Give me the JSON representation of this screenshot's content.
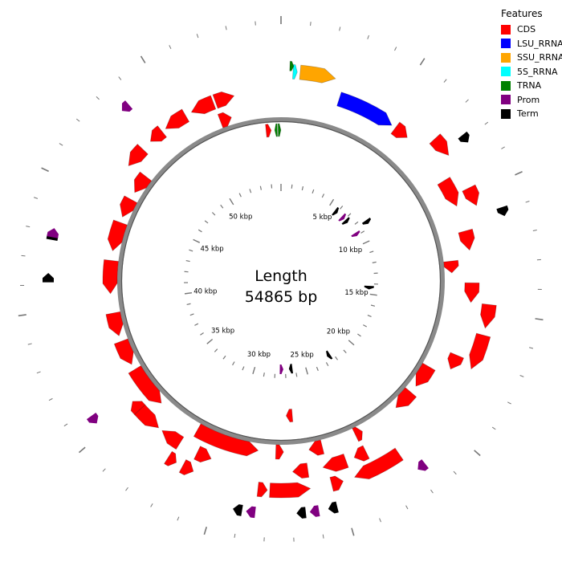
{
  "legend": {
    "title": "Features",
    "items": [
      {
        "label": "CDS",
        "color": "#ff0000"
      },
      {
        "label": "LSU_RRNA",
        "color": "#0000ff"
      },
      {
        "label": "SSU_RRNA",
        "color": "#ffa500"
      },
      {
        "label": "5S_RRNA",
        "color": "#00ffff"
      },
      {
        "label": "TRNA",
        "color": "#008000"
      },
      {
        "label": "Prom",
        "color": "#800080"
      },
      {
        "label": "Term",
        "color": "#000000"
      }
    ]
  },
  "center": {
    "line1": "Length",
    "line2": "54865 bp"
  },
  "sequence_length_bp": 54865,
  "scale_labels": [
    {
      "bp": 5000,
      "label": "5 kbp"
    },
    {
      "bp": 10000,
      "label": "10 kbp"
    },
    {
      "bp": 15000,
      "label": "15 kbp"
    },
    {
      "bp": 20000,
      "label": "20 kbp"
    },
    {
      "bp": 25000,
      "label": "25 kbp"
    },
    {
      "bp": 30000,
      "label": "30 kbp"
    },
    {
      "bp": 35000,
      "label": "35 kbp"
    },
    {
      "bp": 40000,
      "label": "40 kbp"
    },
    {
      "bp": 45000,
      "label": "45 kbp"
    },
    {
      "bp": 50000,
      "label": "50 kbp"
    }
  ],
  "features": [
    {
      "type": "SSU_RRNA",
      "track": "o3",
      "start": 800,
      "end": 2300,
      "strand": 1
    },
    {
      "type": "5S_RRNA",
      "track": "o3",
      "start": 500,
      "end": 680,
      "strand": 1
    },
    {
      "type": "TRNA",
      "track": "o4",
      "start": 360,
      "end": 520,
      "strand": 1
    },
    {
      "type": "LSU_RRNA",
      "track": "o2",
      "start": 2700,
      "end": 5400,
      "strand": 1
    },
    {
      "type": "CDS",
      "track": "o2",
      "start": 5600,
      "end": 6300,
      "strand": 1
    },
    {
      "type": "CDS",
      "track": "o3",
      "start": 7200,
      "end": 8100,
      "strand": 1
    },
    {
      "type": "CDS",
      "track": "o3",
      "start": 9700,
      "end": 10500,
      "strand": 1
    },
    {
      "type": "CDS",
      "track": "o2",
      "start": 8900,
      "end": 10200,
      "strand": 1
    },
    {
      "type": "CDS",
      "track": "o2",
      "start": 11400,
      "end": 12300,
      "strand": 1
    },
    {
      "type": "CDS",
      "track": "o1",
      "start": 12700,
      "end": 13300,
      "strand": 1
    },
    {
      "type": "CDS",
      "track": "o2",
      "start": 13800,
      "end": 14700,
      "strand": 1
    },
    {
      "type": "CDS",
      "track": "o3",
      "start": 14700,
      "end": 15700,
      "strand": 1
    },
    {
      "type": "CDS",
      "track": "o3",
      "start": 16000,
      "end": 17500,
      "strand": 1
    },
    {
      "type": "CDS",
      "track": "o2",
      "start": 17200,
      "end": 17900,
      "strand": 1
    },
    {
      "type": "CDS",
      "track": "o1",
      "start": 18300,
      "end": 19500,
      "strand": 1
    },
    {
      "type": "CDS",
      "track": "o1",
      "start": 19900,
      "end": 21000,
      "strand": 1
    },
    {
      "type": "CDS",
      "track": "o3",
      "start": 22200,
      "end": 24300,
      "strand": 1
    },
    {
      "type": "CDS",
      "track": "o2",
      "start": 23400,
      "end": 24000,
      "strand": 1
    },
    {
      "type": "CDS",
      "track": "o2",
      "start": 24400,
      "end": 25500,
      "strand": 1
    },
    {
      "type": "CDS",
      "track": "o1",
      "start": 23100,
      "end": 23500,
      "strand": -1
    },
    {
      "type": "CDS",
      "track": "o3",
      "start": 24800,
      "end": 25300,
      "strand": -1
    },
    {
      "type": "CDS",
      "track": "o1",
      "start": 25300,
      "end": 26000,
      "strand": 1
    },
    {
      "type": "CDS",
      "track": "o2",
      "start": 26200,
      "end": 26900,
      "strand": 1
    },
    {
      "type": "CDS",
      "track": "o3",
      "start": 26200,
      "end": 27900,
      "strand": -1
    },
    {
      "type": "CDS",
      "track": "o3",
      "start": 28000,
      "end": 28400,
      "strand": -1
    },
    {
      "type": "CDS",
      "track": "o1",
      "start": 27300,
      "end": 27700,
      "strand": -1
    },
    {
      "type": "CDS",
      "track": "o1",
      "start": 28600,
      "end": 31900,
      "strand": -1
    },
    {
      "type": "CDS",
      "track": "o2",
      "start": 30700,
      "end": 31400,
      "strand": -1
    },
    {
      "type": "CDS",
      "track": "o2",
      "start": 32300,
      "end": 33300,
      "strand": 1
    },
    {
      "type": "CDS",
      "track": "o3",
      "start": 32000,
      "end": 32400,
      "strand": -1
    },
    {
      "type": "CDS",
      "track": "o3",
      "start": 31200,
      "end": 31700,
      "strand": -1
    },
    {
      "type": "CDS",
      "track": "o2",
      "start": 33500,
      "end": 34700,
      "strand": -1
    },
    {
      "type": "CDS",
      "track": "o2",
      "start": 34700,
      "end": 35200,
      "strand": 1
    },
    {
      "type": "CDS",
      "track": "o1",
      "start": 34200,
      "end": 36400,
      "strand": -1
    },
    {
      "type": "CDS",
      "track": "o1",
      "start": 36700,
      "end": 38000,
      "strand": -1
    },
    {
      "type": "CDS",
      "track": "o1",
      "start": 38300,
      "end": 39500,
      "strand": -1
    },
    {
      "type": "CDS",
      "track": "o1",
      "start": 40500,
      "end": 42200,
      "strand": -1
    },
    {
      "type": "CDS",
      "track": "o1",
      "start": 42700,
      "end": 44200,
      "strand": -1
    },
    {
      "type": "CDS",
      "track": "o1",
      "start": 44500,
      "end": 45500,
      "strand": -1
    },
    {
      "type": "CDS",
      "track": "o1",
      "start": 45900,
      "end": 46900,
      "strand": -1
    },
    {
      "type": "CDS",
      "track": "o2",
      "start": 46800,
      "end": 47800,
      "strand": -1
    },
    {
      "type": "CDS",
      "track": "o2",
      "start": 48300,
      "end": 49000,
      "strand": -1
    },
    {
      "type": "CDS",
      "track": "o2",
      "start": 49200,
      "end": 50300,
      "strand": -1
    },
    {
      "type": "CDS",
      "track": "o2",
      "start": 50600,
      "end": 51700,
      "strand": -1
    },
    {
      "type": "CDS",
      "track": "o1",
      "start": 51700,
      "end": 52300,
      "strand": 1
    },
    {
      "type": "CDS",
      "track": "o2",
      "start": 51800,
      "end": 52700,
      "strand": 1
    },
    {
      "type": "CDS",
      "track": "i1",
      "start": 54000,
      "end": 54300,
      "strand": 1
    },
    {
      "type": "CDS",
      "track": "i2",
      "start": 26700,
      "end": 27100,
      "strand": 1
    },
    {
      "type": "TRNA",
      "track": "i1",
      "start": 54500,
      "end": 54650,
      "strand": -1
    },
    {
      "type": "TRNA",
      "track": "i1",
      "start": 54700,
      "end": 54860,
      "strand": 1
    },
    {
      "type": "Term",
      "track": "o5",
      "start": 7800,
      "end": 8150,
      "strand": 1
    },
    {
      "type": "Term",
      "track": "o5",
      "start": 10900,
      "end": 11250,
      "strand": 1
    },
    {
      "type": "Term",
      "track": "o5",
      "start": 25300,
      "end": 25650,
      "strand": 1
    },
    {
      "type": "Term",
      "track": "o5",
      "start": 26500,
      "end": 26850,
      "strand": 1
    },
    {
      "type": "Term",
      "track": "o5",
      "start": 28900,
      "end": 29250,
      "strand": 1
    },
    {
      "type": "Term",
      "track": "o5",
      "start": 41100,
      "end": 41450,
      "strand": 1
    },
    {
      "type": "Term",
      "track": "o5",
      "start": 42700,
      "end": 43050,
      "strand": 1
    },
    {
      "type": "Term",
      "track": "i4",
      "start": 5700,
      "end": 6050,
      "strand": 1
    },
    {
      "type": "Term",
      "track": "i4",
      "start": 7100,
      "end": 7450,
      "strand": 1
    },
    {
      "type": "Term",
      "track": "i4",
      "start": 14200,
      "end": 14550,
      "strand": 1
    },
    {
      "type": "Term",
      "track": "i4",
      "start": 22300,
      "end": 22650,
      "strand": 1
    },
    {
      "type": "Term",
      "track": "i4",
      "start": 26300,
      "end": 26650,
      "strand": 1
    },
    {
      "type": "Term",
      "track": "i3",
      "start": 8300,
      "end": 8650,
      "strand": 1
    },
    {
      "type": "Prom",
      "track": "o5",
      "start": 21600,
      "end": 21950,
      "strand": 1
    },
    {
      "type": "Prom",
      "track": "o5",
      "start": 26000,
      "end": 26350,
      "strand": 1
    },
    {
      "type": "Prom",
      "track": "o5",
      "start": 28400,
      "end": 28750,
      "strand": 1
    },
    {
      "type": "Prom",
      "track": "o5",
      "start": 35400,
      "end": 35750,
      "strand": -1
    },
    {
      "type": "Prom",
      "track": "o5",
      "start": 42800,
      "end": 43150,
      "strand": 1
    },
    {
      "type": "Prom",
      "track": "o5",
      "start": 48300,
      "end": 48650,
      "strand": -1
    },
    {
      "type": "Prom",
      "track": "i4",
      "start": 6600,
      "end": 6950,
      "strand": 1
    },
    {
      "type": "Prom",
      "track": "i4",
      "start": 8700,
      "end": 9050,
      "strand": 1
    },
    {
      "type": "Prom",
      "track": "i4",
      "start": 27200,
      "end": 27550,
      "strand": -1
    }
  ]
}
